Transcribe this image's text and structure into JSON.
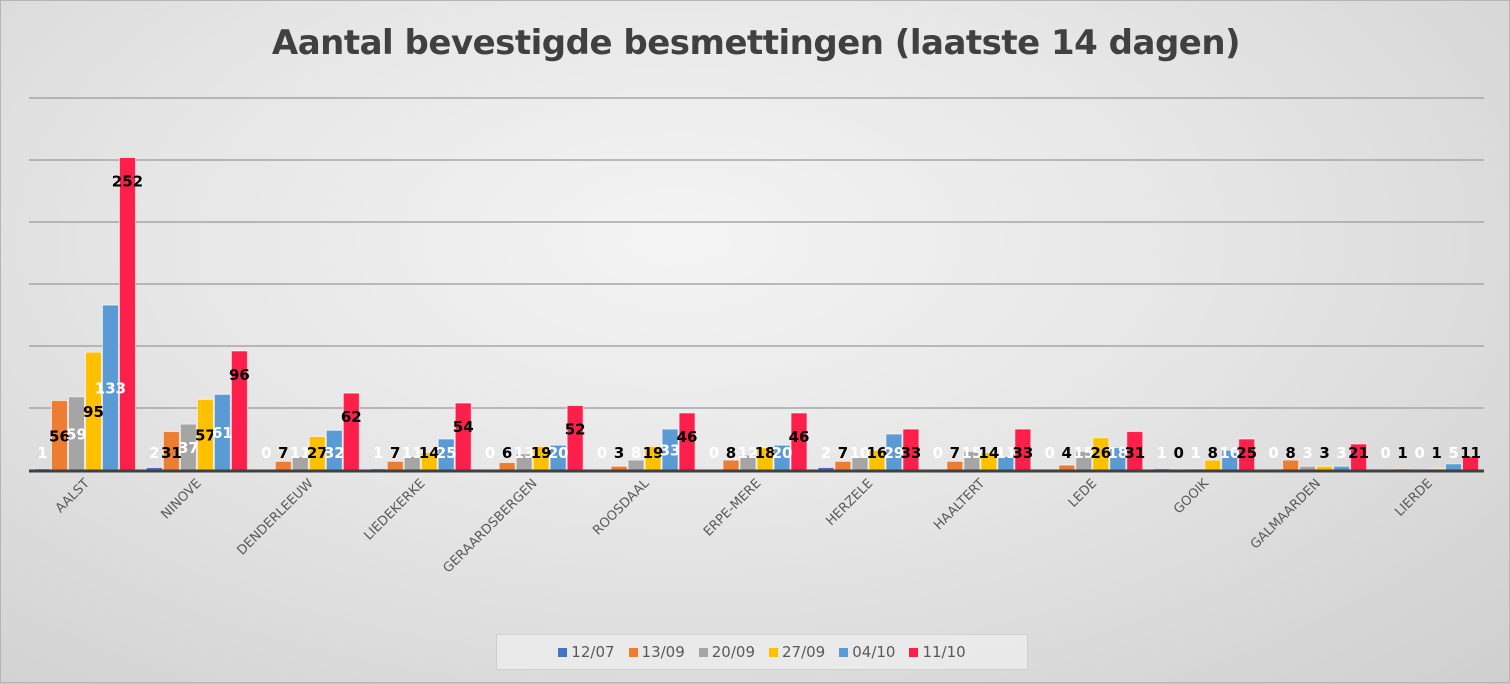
{
  "chart_data": {
    "type": "bar",
    "title": "Aantal bevestigde besmettingen (laatste 14 dagen)",
    "xlabel": "",
    "ylabel": "",
    "ylim": [
      0,
      300
    ],
    "grid": true,
    "gridline_step": 50,
    "legend_position": "bottom",
    "categories": [
      "AALST",
      "NINOVE",
      "DENDERLEEUW",
      "LIEDEKERKE",
      "GERAARDSBERGEN",
      "ROOSDAAL",
      "ERPE-MERE",
      "HERZELE",
      "HAALTERT",
      "LEDE",
      "GOOIK",
      "GALMAARDEN",
      "LIERDE"
    ],
    "series": [
      {
        "name": "12/07",
        "color": "#4472c4",
        "label_color": "#ffffff",
        "values": [
          1,
          2,
          0,
          1,
          0,
          0,
          0,
          2,
          0,
          0,
          1,
          0,
          0
        ]
      },
      {
        "name": "13/09",
        "color": "#ed7d31",
        "label_color": "#000000",
        "values": [
          56,
          31,
          7,
          7,
          6,
          3,
          8,
          7,
          7,
          4,
          0,
          8,
          1
        ]
      },
      {
        "name": "20/09",
        "color": "#a5a5a5",
        "label_color": "#ffffff",
        "values": [
          59,
          37,
          11,
          11,
          13,
          8,
          12,
          10,
          15,
          15,
          1,
          3,
          0
        ]
      },
      {
        "name": "27/09",
        "color": "#ffc000",
        "label_color": "#000000",
        "values": [
          95,
          57,
          27,
          14,
          19,
          19,
          18,
          16,
          14,
          26,
          8,
          3,
          1
        ]
      },
      {
        "name": "04/10",
        "color": "#5b9bd5",
        "label_color": "#ffffff",
        "values": [
          133,
          61,
          32,
          25,
          20,
          33,
          20,
          29,
          11,
          18,
          16,
          3,
          5
        ]
      },
      {
        "name": "11/10",
        "color": "#ff1f4b",
        "label_color": "#000000",
        "values": [
          252,
          96,
          62,
          54,
          52,
          46,
          46,
          33,
          33,
          31,
          25,
          21,
          11
        ]
      }
    ]
  }
}
